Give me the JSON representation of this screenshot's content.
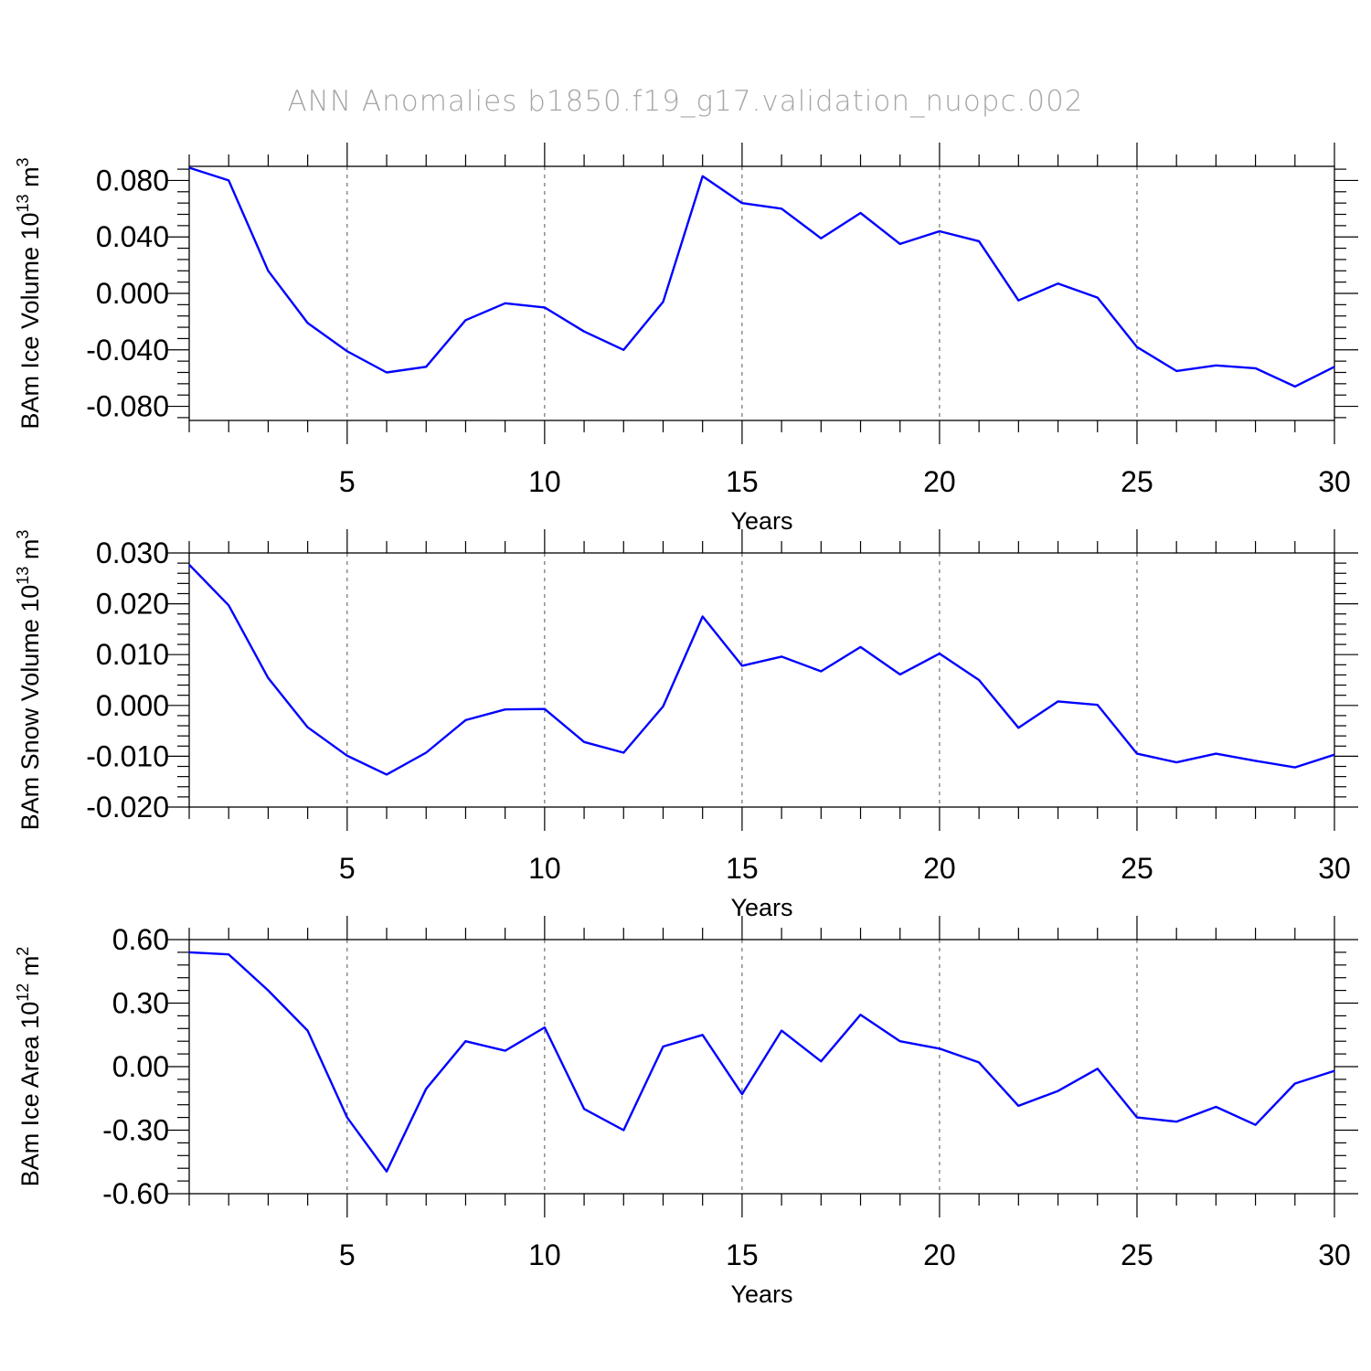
{
  "chart_data": [
    {
      "type": "line",
      "title": "ANN Anomalies b1850.f19_g17.validation_nuopc.002",
      "xlabel": "Years",
      "ylabel": "BAm Ice Volume 10",
      "ylabel_exp": "13",
      "ylabel_unit": " m",
      "ylabel_unit_exp": "3",
      "xlim": [
        1,
        30
      ],
      "ylim": [
        -0.09,
        0.09
      ],
      "yticks": [
        -0.08,
        -0.04,
        0.0,
        0.04,
        0.08
      ],
      "ytick_labels": [
        "-0.080",
        "-0.040",
        "0.000",
        "0.040",
        "0.080"
      ],
      "xticks": [
        5,
        10,
        15,
        20,
        25,
        30
      ],
      "xtick_labels": [
        "5",
        "10",
        "15",
        "20",
        "25",
        "30"
      ],
      "grid_x": [
        5,
        10,
        15,
        20,
        25
      ],
      "series": [
        {
          "name": "BAm Ice Volume",
          "color": "#0000ff",
          "x": [
            1,
            2,
            3,
            4,
            5,
            6,
            7,
            8,
            9,
            10,
            11,
            12,
            13,
            14,
            15,
            16,
            17,
            18,
            19,
            20,
            21,
            22,
            23,
            24,
            25,
            26,
            27,
            28,
            29,
            30
          ],
          "values": [
            0.089,
            0.08,
            0.016,
            -0.021,
            -0.041,
            -0.056,
            -0.052,
            -0.019,
            -0.007,
            -0.01,
            -0.027,
            -0.04,
            -0.006,
            0.083,
            0.064,
            0.06,
            0.039,
            0.057,
            0.035,
            0.044,
            0.037,
            -0.005,
            0.007,
            -0.003,
            -0.038,
            -0.055,
            -0.051,
            -0.053,
            -0.066,
            -0.052
          ]
        }
      ]
    },
    {
      "type": "line",
      "xlabel": "Years",
      "ylabel": "BAm Snow Volume 10",
      "ylabel_exp": "13",
      "ylabel_unit": " m",
      "ylabel_unit_exp": "3",
      "xlim": [
        1,
        30
      ],
      "ylim": [
        -0.02,
        0.03
      ],
      "yticks": [
        -0.02,
        -0.01,
        0.0,
        0.01,
        0.02,
        0.03
      ],
      "ytick_labels": [
        "-0.020",
        "-0.010",
        "0.000",
        "0.010",
        "0.020",
        "0.030"
      ],
      "xticks": [
        5,
        10,
        15,
        20,
        25,
        30
      ],
      "xtick_labels": [
        "5",
        "10",
        "15",
        "20",
        "25",
        "30"
      ],
      "grid_x": [
        5,
        10,
        15,
        20,
        25
      ],
      "series": [
        {
          "name": "BAm Snow Volume",
          "color": "#0000ff",
          "x": [
            1,
            2,
            3,
            4,
            5,
            6,
            7,
            8,
            9,
            10,
            11,
            12,
            13,
            14,
            15,
            16,
            17,
            18,
            19,
            20,
            21,
            22,
            23,
            24,
            25,
            26,
            27,
            28,
            29,
            30
          ],
          "values": [
            0.0277,
            0.0197,
            0.0054,
            -0.0043,
            -0.0099,
            -0.0136,
            -0.0093,
            -0.0029,
            -0.0008,
            -0.0007,
            -0.0072,
            -0.0093,
            -0.0002,
            0.0175,
            0.0078,
            0.0096,
            0.0067,
            0.0115,
            0.0061,
            0.0102,
            0.005,
            -0.0044,
            0.0008,
            0.0001,
            -0.0095,
            -0.0112,
            -0.0095,
            -0.0109,
            -0.0122,
            -0.0097
          ]
        }
      ]
    },
    {
      "type": "line",
      "xlabel": "Years",
      "ylabel": "BAm Ice Area 10",
      "ylabel_exp": "12",
      "ylabel_unit": " m",
      "ylabel_unit_exp": "2",
      "xlim": [
        1,
        30
      ],
      "ylim": [
        -0.6,
        0.6
      ],
      "yticks": [
        -0.6,
        -0.3,
        0.0,
        0.3,
        0.6
      ],
      "ytick_labels": [
        "-0.60",
        "-0.30",
        "0.00",
        "0.30",
        "0.60"
      ],
      "xticks": [
        5,
        10,
        15,
        20,
        25,
        30
      ],
      "xtick_labels": [
        "5",
        "10",
        "15",
        "20",
        "25",
        "30"
      ],
      "grid_x": [
        5,
        10,
        15,
        20,
        25
      ],
      "series": [
        {
          "name": "BAm Ice Area",
          "color": "#0000ff",
          "x": [
            1,
            2,
            3,
            4,
            5,
            6,
            7,
            8,
            9,
            10,
            11,
            12,
            13,
            14,
            15,
            16,
            17,
            18,
            19,
            20,
            21,
            22,
            23,
            24,
            25,
            26,
            27,
            28,
            29,
            30
          ],
          "values": [
            0.54,
            0.53,
            0.36,
            0.17,
            -0.24,
            -0.495,
            -0.105,
            0.12,
            0.075,
            0.185,
            -0.2,
            -0.3,
            0.095,
            0.15,
            -0.13,
            0.17,
            0.025,
            0.245,
            0.12,
            0.085,
            0.02,
            -0.185,
            -0.115,
            -0.01,
            -0.24,
            -0.26,
            -0.19,
            -0.275,
            -0.08,
            -0.02
          ]
        }
      ]
    }
  ]
}
